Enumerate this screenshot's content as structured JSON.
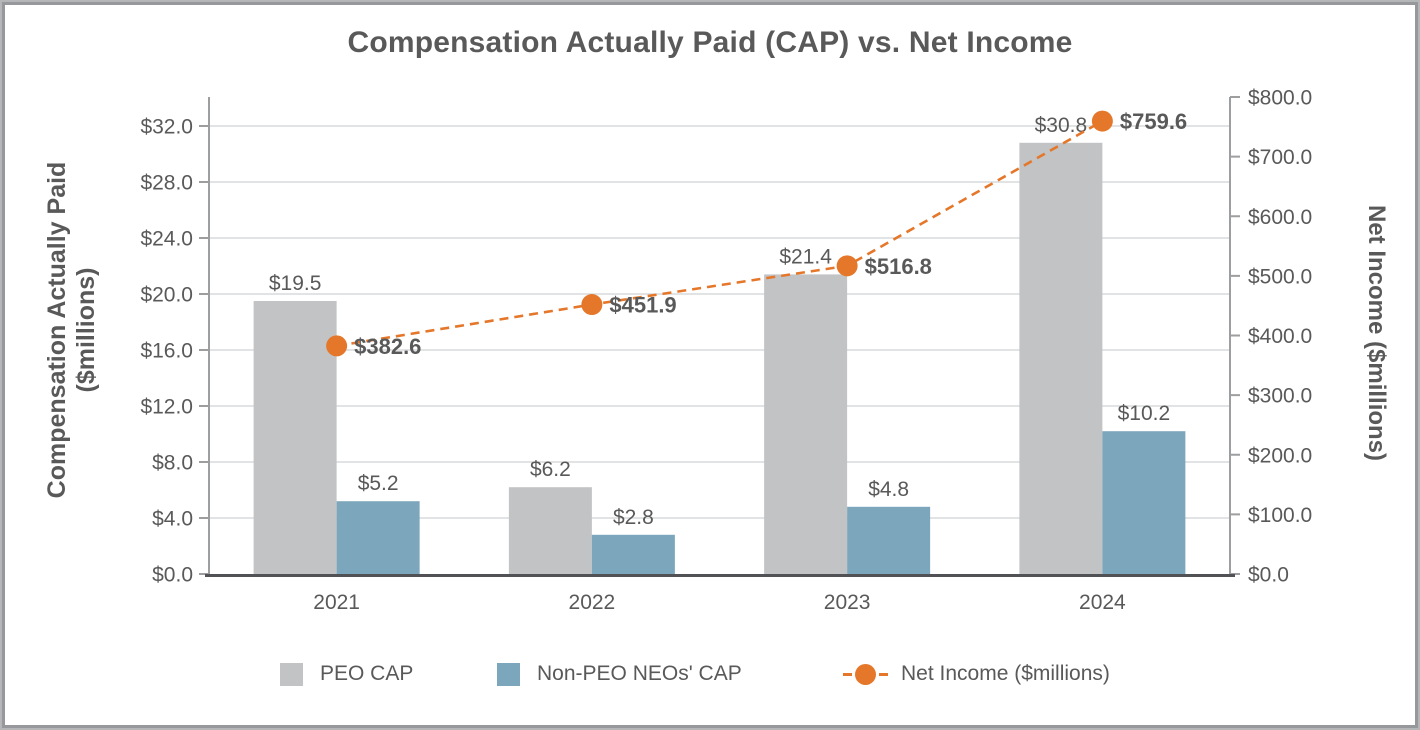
{
  "title": "Compensation Actually Paid (CAP) vs. Net Income",
  "colors": {
    "peo_bar": "#c1c3c5",
    "neo_bar": "#7ca6bb",
    "net_income": "#e5772a",
    "text": "#595959",
    "gridline": "#d9dadc",
    "axis_line": "#9c9ea0",
    "baseline": "#515256"
  },
  "chart_data": {
    "type": "bar+line",
    "categories": [
      "2021",
      "2022",
      "2023",
      "2024"
    ],
    "series": [
      {
        "name": "PEO CAP",
        "type": "bar",
        "axis": "left",
        "color": "#c1c3c5",
        "values": [
          19.5,
          6.2,
          21.4,
          30.8
        ],
        "data_labels": [
          "$19.5",
          "$6.2",
          "$21.4",
          "$30.8"
        ]
      },
      {
        "name": "Non-PEO NEOs' CAP",
        "type": "bar",
        "axis": "left",
        "color": "#7ca6bb",
        "values": [
          5.2,
          2.8,
          4.8,
          10.2
        ],
        "data_labels": [
          "$5.2",
          "$2.8",
          "$4.8",
          "$10.2"
        ]
      },
      {
        "name": "Net Income ($millions)",
        "type": "line",
        "axis": "right",
        "color": "#e5772a",
        "line_style": "dashed",
        "marker": "circle",
        "values": [
          382.6,
          451.9,
          516.8,
          759.6
        ],
        "data_labels": [
          "$382.6",
          "$451.9",
          "$516.8",
          "$759.6"
        ]
      }
    ],
    "left_axis": {
      "title": [
        "Compensation Actually Paid",
        "($millions)"
      ],
      "tick_values": [
        0,
        4,
        8,
        12,
        16,
        20,
        24,
        28,
        32
      ],
      "tick_labels": [
        "$0.0",
        "$4.0",
        "$8.0",
        "$12.0",
        "$16.0",
        "$20.0",
        "$24.0",
        "$28.0",
        "$32.0"
      ],
      "lim": [
        0,
        32
      ]
    },
    "right_axis": {
      "title": "Net Income ($millions)",
      "tick_values": [
        0,
        100,
        200,
        300,
        400,
        500,
        600,
        700,
        800
      ],
      "tick_labels": [
        "$0.0",
        "$100.0",
        "$200.0",
        "$300.0",
        "$400.0",
        "$500.0",
        "$600.0",
        "$700.0",
        "$800.0"
      ],
      "lim": [
        0,
        800
      ]
    },
    "grid": true,
    "legend_position": "bottom"
  },
  "legend": {
    "items": [
      {
        "label": "PEO CAP"
      },
      {
        "label": "Non-PEO NEOs' CAP"
      },
      {
        "label": "Net Income ($millions)"
      }
    ]
  }
}
